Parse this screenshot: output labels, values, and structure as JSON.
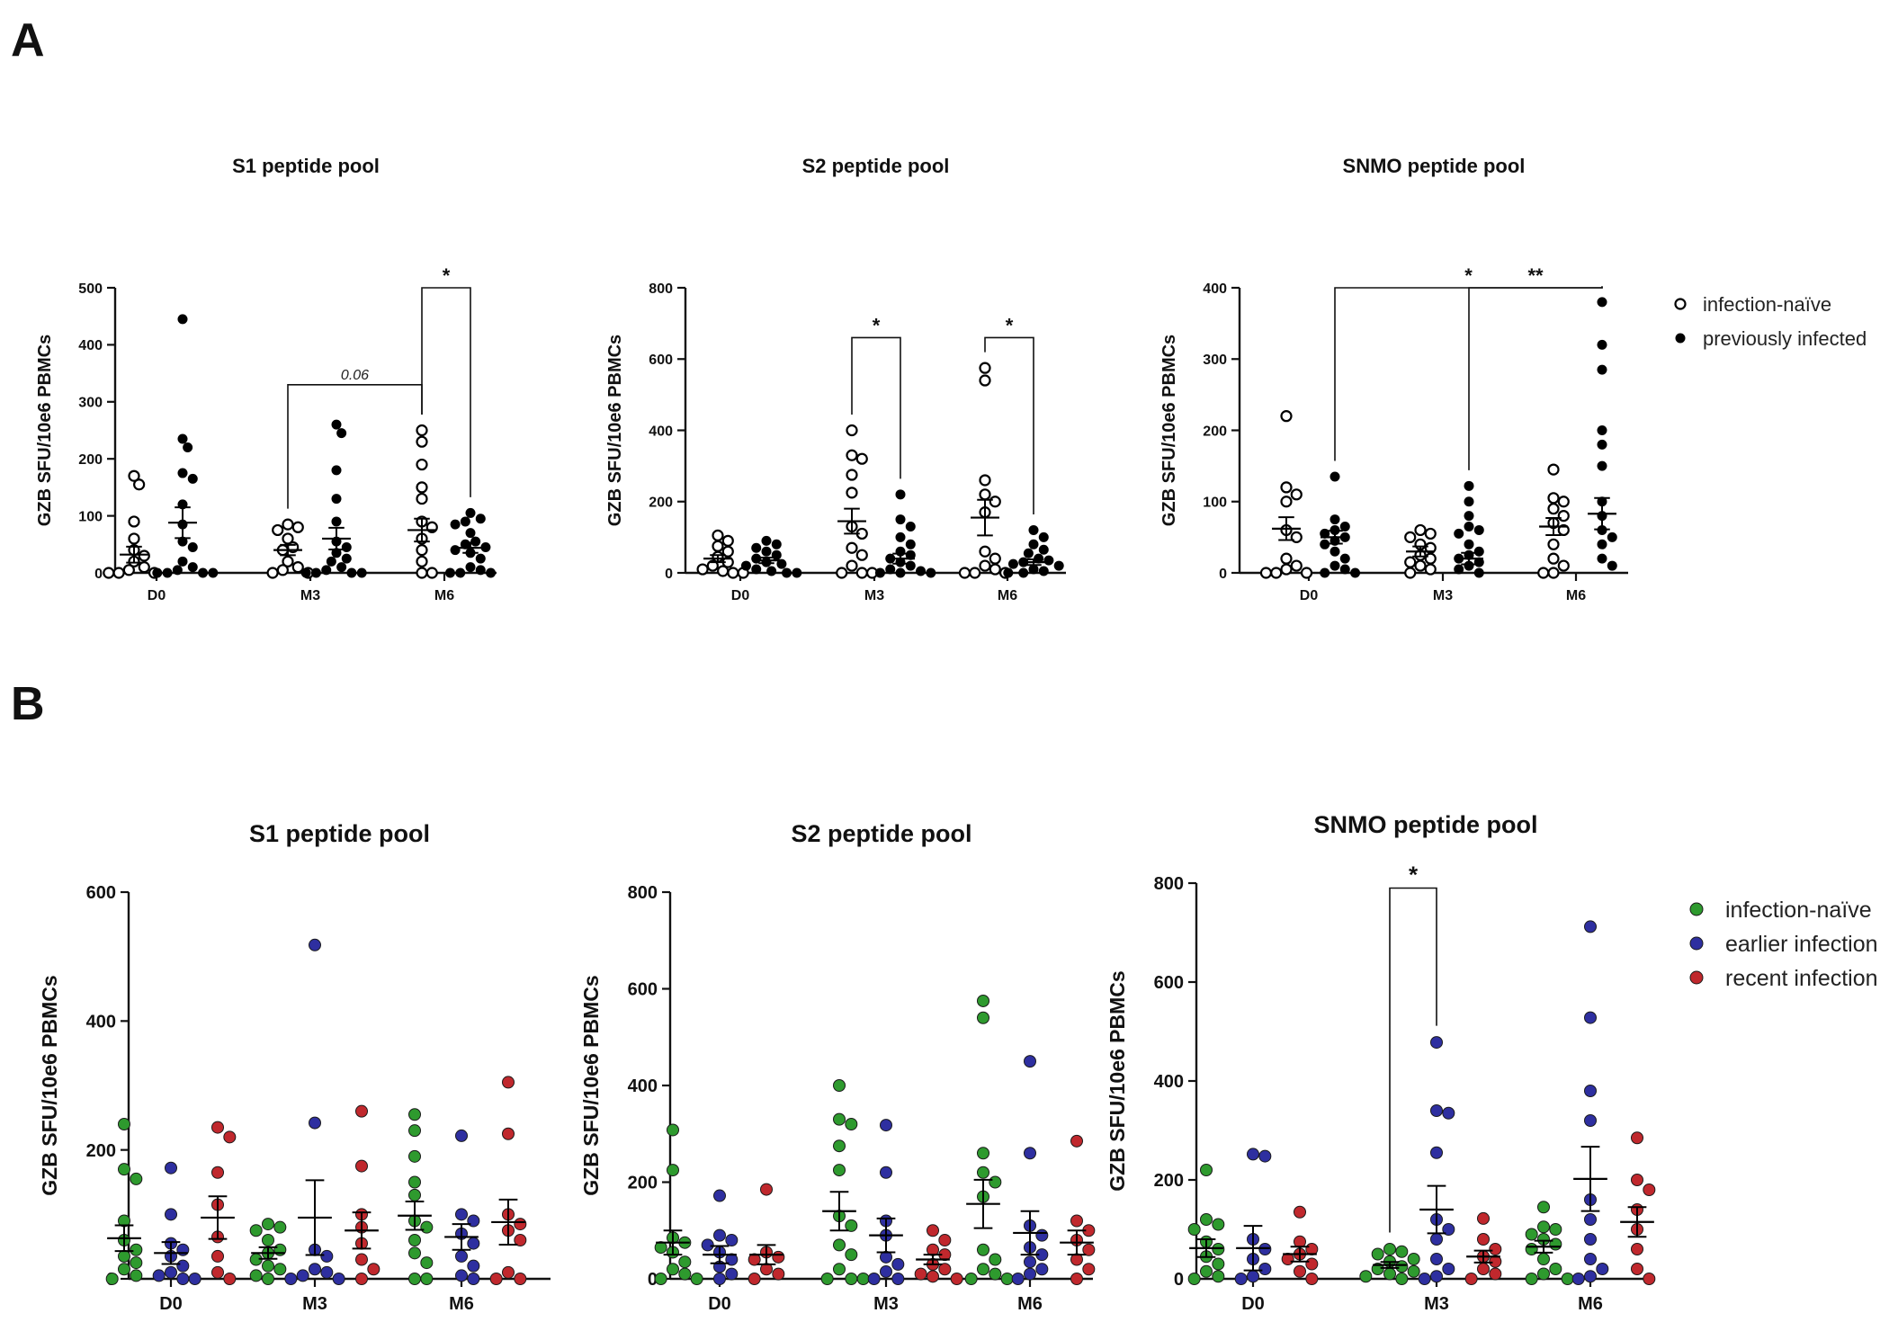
{
  "panels": {
    "a": "A",
    "b": "B"
  },
  "ylabel": "GZB SFU/10e6 PBMCs",
  "legend_a": {
    "items": [
      {
        "label": "infection-naïve",
        "marker": "open"
      },
      {
        "label": "previously infected",
        "marker": "filled"
      }
    ]
  },
  "legend_b": {
    "items": [
      {
        "label": "infection-naïve",
        "color": "#2e9a2e"
      },
      {
        "label": "earlier infection",
        "color": "#2e2fa0"
      },
      {
        "label": "recent infection",
        "color": "#c0282d"
      }
    ]
  },
  "chart_data": [
    {
      "type": "scatter",
      "panel": "A",
      "title": "S1 peptide pool",
      "xlabel": "",
      "ylabel": "GZB SFU/10e6 PBMCs",
      "categories": [
        "D0",
        "M3",
        "M6"
      ],
      "ylim": [
        0,
        500
      ],
      "yticks": [
        0,
        100,
        200,
        300,
        400,
        500
      ],
      "series": [
        {
          "name": "infection-naïve",
          "marker": "open",
          "color": "#000000",
          "values": [
            [
              170,
              155,
              90,
              60,
              40,
              30,
              20,
              10,
              5,
              0,
              0,
              0
            ],
            [
              85,
              80,
              75,
              60,
              45,
              40,
              20,
              10,
              5,
              0,
              0
            ],
            [
              250,
              230,
              190,
              150,
              130,
              90,
              80,
              60,
              40,
              20,
              0,
              0
            ]
          ],
          "means": [
            32,
            40,
            75
          ],
          "sems": [
            14,
            9,
            20
          ]
        },
        {
          "name": "previously infected",
          "marker": "filled",
          "color": "#000000",
          "values": [
            [
              445,
              235,
              220,
              175,
              165,
              120,
              85,
              55,
              45,
              20,
              10,
              5,
              0,
              0,
              0,
              0
            ],
            [
              260,
              245,
              180,
              130,
              90,
              55,
              45,
              35,
              25,
              20,
              10,
              5,
              0,
              0,
              0,
              0
            ],
            [
              105,
              95,
              90,
              85,
              70,
              55,
              50,
              45,
              40,
              35,
              25,
              10,
              5,
              0,
              0,
              0
            ]
          ],
          "means": [
            88,
            60,
            44
          ],
          "sems": [
            27,
            19,
            9
          ]
        }
      ],
      "annotations": [
        {
          "between": [
            [
              1,
              0
            ],
            [
              2,
              0
            ]
          ],
          "label": "0.06",
          "style": "italic",
          "level": 330
        },
        {
          "between": [
            [
              2,
              0
            ],
            [
              2,
              1
            ]
          ],
          "label": "*",
          "style": "star",
          "level": 500
        }
      ]
    },
    {
      "type": "scatter",
      "panel": "A",
      "title": "S2 peptide pool",
      "xlabel": "",
      "ylabel": "GZB SFU/10e6 PBMCs",
      "categories": [
        "D0",
        "M3",
        "M6"
      ],
      "ylim": [
        0,
        800
      ],
      "yticks": [
        0,
        200,
        400,
        600,
        800
      ],
      "series": [
        {
          "name": "infection-naïve",
          "marker": "open",
          "color": "#000000",
          "values": [
            [
              105,
              90,
              75,
              60,
              45,
              30,
              20,
              10,
              5,
              0,
              0
            ],
            [
              400,
              330,
              320,
              275,
              225,
              130,
              110,
              70,
              50,
              20,
              0,
              0,
              0
            ],
            [
              575,
              540,
              260,
              220,
              200,
              170,
              60,
              40,
              20,
              10,
              0,
              0,
              0
            ]
          ],
          "means": [
            40,
            145,
            155
          ],
          "sems": [
            10,
            35,
            50
          ]
        },
        {
          "name": "previously infected",
          "marker": "filled",
          "color": "#000000",
          "values": [
            [
              90,
              80,
              70,
              60,
              50,
              40,
              30,
              25,
              20,
              10,
              5,
              0,
              0
            ],
            [
              220,
              150,
              130,
              100,
              80,
              60,
              50,
              40,
              30,
              20,
              10,
              5,
              0,
              0,
              0
            ],
            [
              120,
              100,
              80,
              65,
              55,
              40,
              35,
              30,
              25,
              20,
              10,
              5,
              0,
              0
            ]
          ],
          "means": [
            35,
            40,
            30
          ],
          "sems": [
            8,
            14,
            8
          ]
        }
      ],
      "annotations": [
        {
          "between": [
            [
              1,
              0
            ],
            [
              1,
              1
            ]
          ],
          "label": "*",
          "style": "star",
          "level": 660
        },
        {
          "between": [
            [
              2,
              0
            ],
            [
              2,
              1
            ]
          ],
          "label": "*",
          "style": "star",
          "level": 660
        }
      ]
    },
    {
      "type": "scatter",
      "panel": "A",
      "title": "SNMO peptide pool",
      "xlabel": "",
      "ylabel": "GZB SFU/10e6 PBMCs",
      "categories": [
        "D0",
        "M3",
        "M6"
      ],
      "ylim": [
        0,
        400
      ],
      "yticks": [
        0,
        100,
        200,
        300,
        400
      ],
      "series": [
        {
          "name": "infection-naïve",
          "marker": "open",
          "color": "#000000",
          "values": [
            [
              220,
              120,
              110,
              100,
              60,
              50,
              20,
              10,
              5,
              0,
              0,
              0
            ],
            [
              60,
              55,
              50,
              40,
              35,
              25,
              20,
              15,
              10,
              5,
              0
            ],
            [
              145,
              105,
              100,
              90,
              80,
              70,
              60,
              40,
              20,
              10,
              0,
              0
            ]
          ],
          "means": [
            62,
            30,
            65
          ],
          "sems": [
            16,
            7,
            12
          ]
        },
        {
          "name": "previously infected",
          "marker": "filled",
          "color": "#000000",
          "values": [
            [
              135,
              75,
              65,
              60,
              55,
              50,
              45,
              40,
              30,
              20,
              10,
              5,
              0,
              0
            ],
            [
              122,
              100,
              80,
              65,
              60,
              55,
              40,
              30,
              25,
              20,
              15,
              10,
              5,
              0
            ],
            [
              380,
              320,
              285,
              200,
              180,
              150,
              100,
              80,
              60,
              50,
              40,
              20,
              10
            ]
          ],
          "means": [
            50,
            20,
            83
          ],
          "sems": [
            9,
            8,
            22
          ]
        }
      ],
      "annotations": [
        {
          "between": [
            [
              0,
              1
            ],
            [
              2,
              1
            ]
          ],
          "label": "*",
          "style": "star",
          "level": 480
        },
        {
          "between": [
            [
              1,
              1
            ],
            [
              2,
              1
            ]
          ],
          "label": "**",
          "style": "star",
          "level": 430
        }
      ]
    },
    {
      "type": "scatter",
      "panel": "B",
      "title": "S1 peptide pool",
      "xlabel": "",
      "ylabel": "GZB SFU/10e6 PBMCs",
      "categories": [
        "D0",
        "M3",
        "M6"
      ],
      "ylim": [
        0,
        600
      ],
      "yticks": [
        0,
        200,
        400,
        600
      ],
      "series": [
        {
          "name": "infection-naïve",
          "color": "#2e9a2e",
          "values": [
            [
              240,
              170,
              155,
              90,
              60,
              45,
              35,
              25,
              15,
              5,
              0
            ],
            [
              85,
              80,
              75,
              60,
              45,
              40,
              30,
              20,
              15,
              5,
              0
            ],
            [
              255,
              230,
              190,
              150,
              130,
              90,
              80,
              60,
              40,
              25,
              0,
              0
            ]
          ],
          "means": [
            63,
            40,
            98
          ],
          "sems": [
            20,
            9,
            22
          ]
        },
        {
          "name": "earlier infection",
          "color": "#2e2fa0",
          "values": [
            [
              172,
              100,
              55,
              45,
              35,
              20,
              10,
              5,
              0,
              0
            ],
            [
              518,
              242,
              45,
              35,
              15,
              10,
              5,
              0,
              0
            ],
            [
              222,
              100,
              90,
              70,
              55,
              35,
              20,
              5,
              0
            ]
          ],
          "means": [
            40,
            95,
            65
          ],
          "sems": [
            17,
            58,
            20
          ]
        },
        {
          "name": "recent infection",
          "color": "#c0282d",
          "values": [
            [
              235,
              220,
              165,
              115,
              65,
              35,
              10,
              0
            ],
            [
              260,
              175,
              100,
              80,
              55,
              30,
              15,
              0
            ],
            [
              305,
              225,
              100,
              85,
              75,
              60,
              10,
              0,
              0
            ]
          ],
          "means": [
            95,
            75,
            88
          ],
          "sems": [
            33,
            28,
            35
          ]
        }
      ],
      "annotations": []
    },
    {
      "type": "scatter",
      "panel": "B",
      "title": "S2 peptide pool",
      "xlabel": "",
      "ylabel": "GZB SFU/10e6 PBMCs",
      "categories": [
        "D0",
        "M3",
        "M6"
      ],
      "ylim": [
        0,
        800
      ],
      "yticks": [
        0,
        200,
        400,
        600,
        800
      ],
      "series": [
        {
          "name": "infection-naïve",
          "color": "#2e9a2e",
          "values": [
            [
              308,
              225,
              85,
              75,
              65,
              55,
              35,
              20,
              10,
              0,
              0
            ],
            [
              400,
              330,
              320,
              275,
              225,
              130,
              110,
              70,
              50,
              20,
              0,
              0,
              0
            ],
            [
              575,
              540,
              260,
              220,
              200,
              170,
              60,
              40,
              20,
              10,
              0,
              0
            ]
          ],
          "means": [
            75,
            140,
            155
          ],
          "sems": [
            25,
            40,
            50
          ]
        },
        {
          "name": "earlier infection",
          "color": "#2e2fa0",
          "values": [
            [
              172,
              90,
              80,
              70,
              55,
              40,
              25,
              10,
              0
            ],
            [
              318,
              220,
              120,
              90,
              45,
              30,
              15,
              0,
              0
            ],
            [
              450,
              260,
              110,
              90,
              65,
              50,
              35,
              20,
              10,
              0
            ]
          ],
          "means": [
            50,
            90,
            95
          ],
          "sems": [
            18,
            35,
            45
          ]
        },
        {
          "name": "recent infection",
          "color": "#c0282d",
          "values": [
            [
              185,
              55,
              45,
              40,
              20,
              10,
              0
            ],
            [
              100,
              80,
              60,
              50,
              30,
              20,
              10,
              5,
              0
            ],
            [
              285,
              120,
              100,
              80,
              60,
              40,
              20,
              0
            ]
          ],
          "means": [
            50,
            40,
            75
          ],
          "sems": [
            20,
            10,
            25
          ]
        }
      ],
      "annotations": []
    },
    {
      "type": "scatter",
      "panel": "B",
      "title": "SNMO peptide pool",
      "xlabel": "",
      "ylabel": "GZB SFU/10e6 PBMCs",
      "categories": [
        "D0",
        "M3",
        "M6"
      ],
      "ylim": [
        0,
        800
      ],
      "yticks": [
        0,
        200,
        400,
        600,
        800
      ],
      "series": [
        {
          "name": "infection-naïve",
          "color": "#2e9a2e",
          "values": [
            [
              220,
              120,
              110,
              100,
              75,
              60,
              45,
              30,
              15,
              5,
              0
            ],
            [
              60,
              55,
              50,
              40,
              35,
              25,
              20,
              15,
              10,
              5,
              0
            ],
            [
              145,
              105,
              100,
              90,
              80,
              70,
              60,
              40,
              20,
              10,
              0,
              0
            ]
          ],
          "means": [
            62,
            28,
            65
          ],
          "sems": [
            18,
            6,
            12
          ]
        },
        {
          "name": "earlier infection",
          "color": "#2e2fa0",
          "values": [
            [
              252,
              248,
              80,
              60,
              40,
              20,
              5,
              0
            ],
            [
              478,
              340,
              335,
              255,
              120,
              100,
              80,
              40,
              20,
              5,
              0
            ],
            [
              712,
              528,
              380,
              320,
              160,
              120,
              80,
              40,
              20,
              5,
              0
            ]
          ],
          "means": [
            62,
            140,
            202
          ],
          "sems": [
            45,
            48,
            65
          ]
        },
        {
          "name": "recent infection",
          "color": "#c0282d",
          "values": [
            [
              135,
              75,
              60,
              50,
              40,
              30,
              15,
              0
            ],
            [
              122,
              80,
              60,
              45,
              35,
              20,
              10,
              0
            ],
            [
              285,
              200,
              180,
              140,
              100,
              60,
              20,
              0
            ]
          ],
          "means": [
            50,
            45,
            115
          ],
          "sems": [
            15,
            12,
            30
          ]
        }
      ],
      "annotations": [
        {
          "between": [
            [
              1,
              0
            ],
            [
              1,
              1
            ]
          ],
          "label": "*",
          "style": "star",
          "level": 790
        }
      ]
    }
  ]
}
